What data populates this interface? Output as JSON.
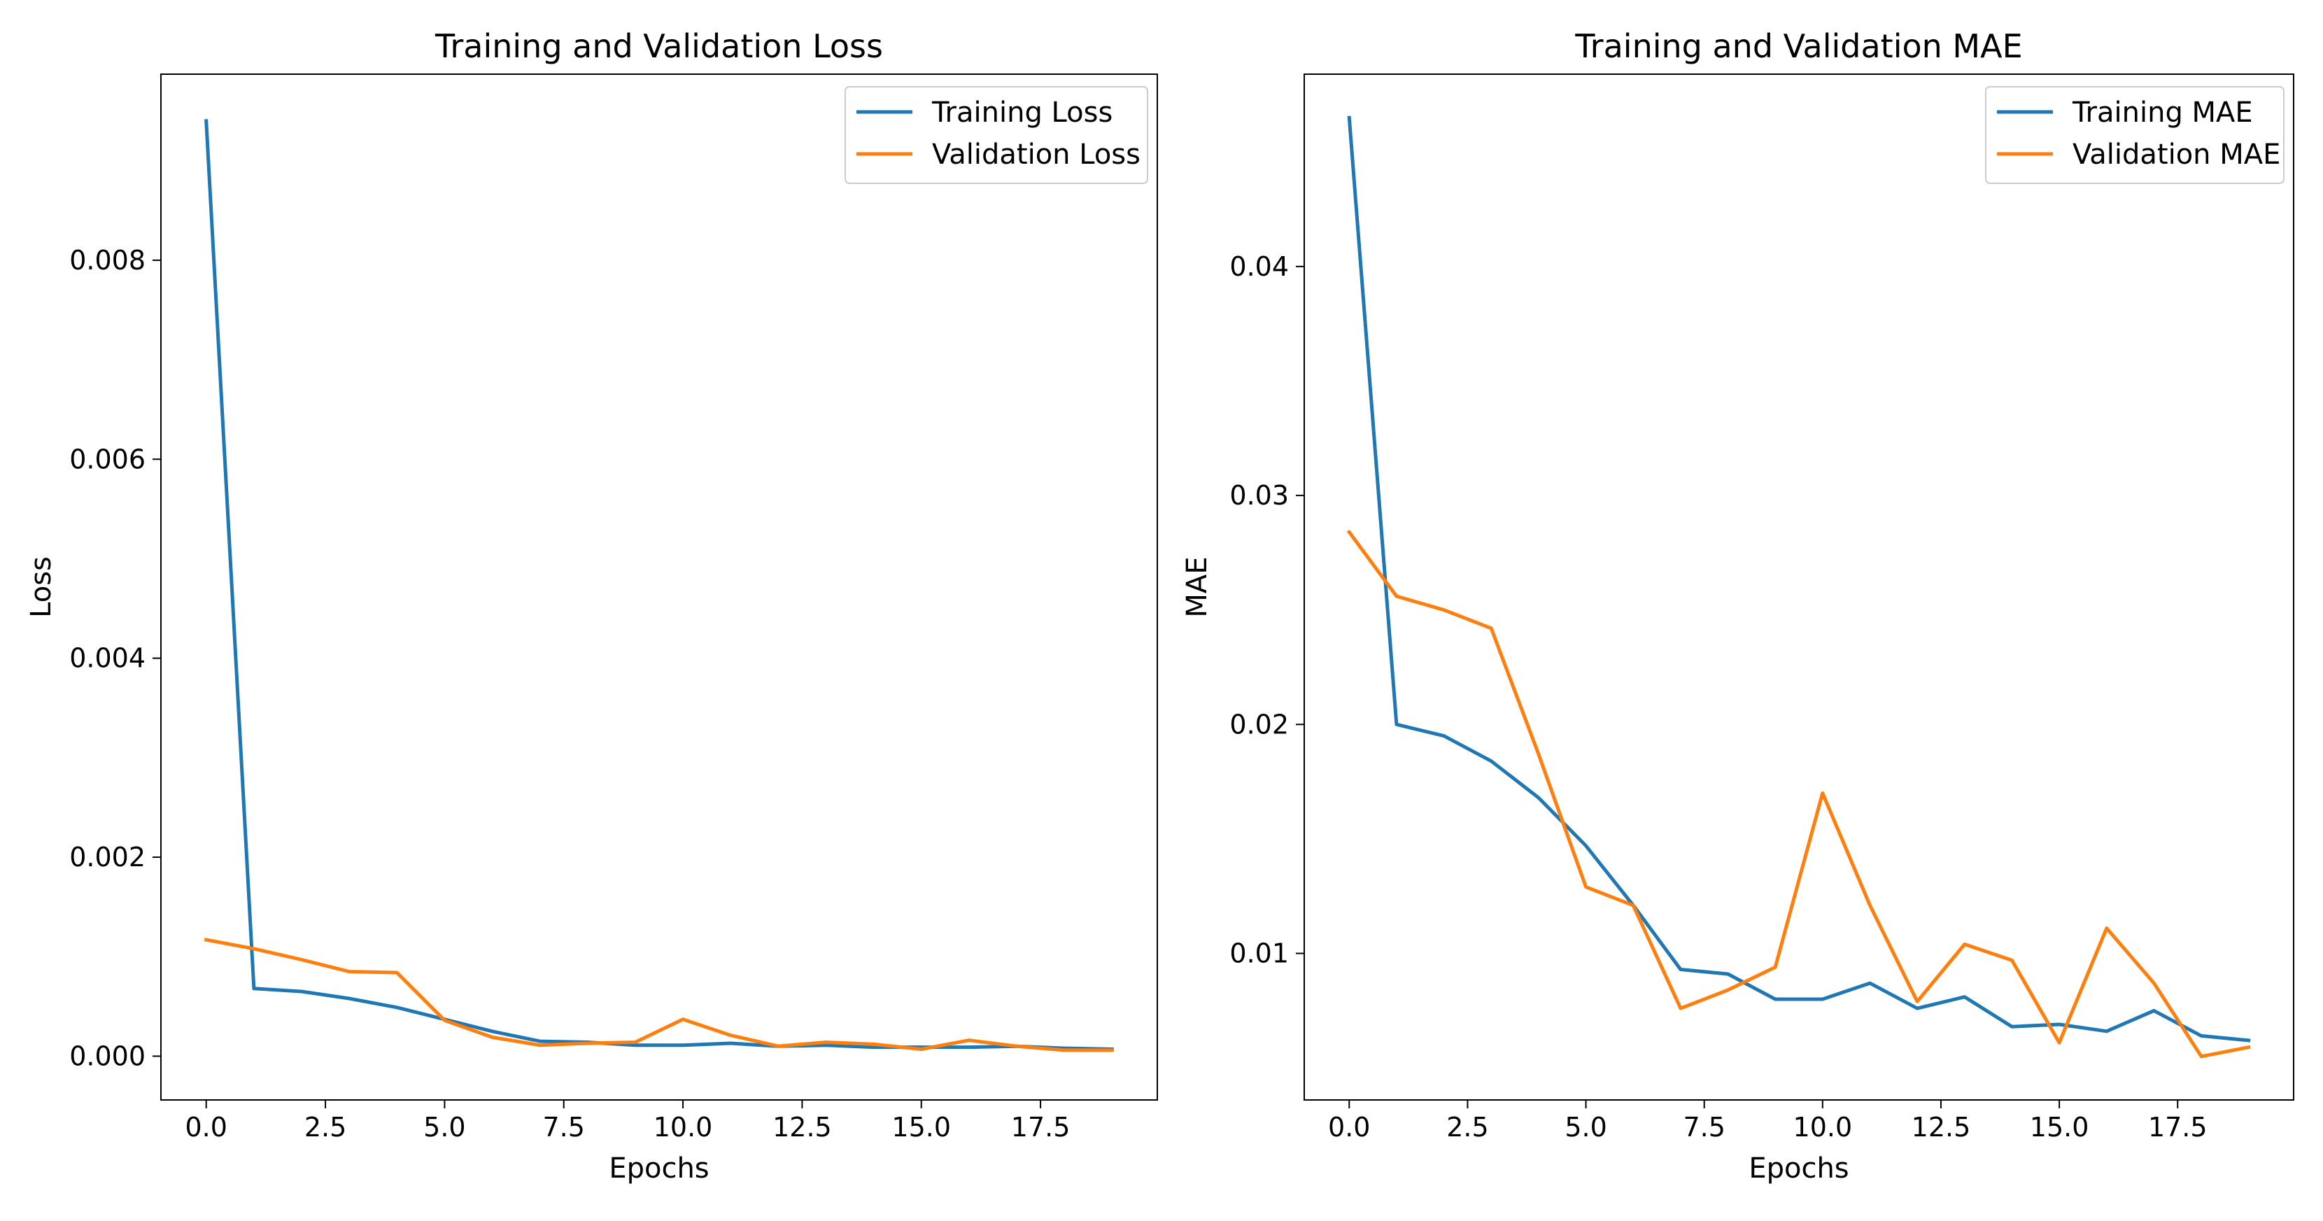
{
  "figure": {
    "colors": {
      "training": "#1f77b4",
      "validation": "#ff7f0e",
      "axes": "#000000",
      "legend_border": "#cccccc"
    }
  },
  "chart_data": [
    {
      "type": "line",
      "title": "Training and Validation Loss",
      "xlabel": "Epochs",
      "ylabel": "Loss",
      "xlim": [
        -0.95,
        19.95
      ],
      "ylim": [
        -0.00044,
        0.00987
      ],
      "xticks": [
        0.0,
        2.5,
        5.0,
        7.5,
        10.0,
        12.5,
        15.0,
        17.5
      ],
      "xtick_labels": [
        "0.0",
        "2.5",
        "5.0",
        "7.5",
        "10.0",
        "12.5",
        "15.0",
        "17.5"
      ],
      "yticks": [
        0.0,
        0.002,
        0.004,
        0.006,
        0.008
      ],
      "ytick_labels": [
        "0.000",
        "0.002",
        "0.004",
        "0.006",
        "0.008"
      ],
      "legend_position": "top-right",
      "grid": false,
      "x": [
        0,
        1,
        2,
        3,
        4,
        5,
        6,
        7,
        8,
        9,
        10,
        11,
        12,
        13,
        14,
        15,
        16,
        17,
        18,
        19
      ],
      "series": [
        {
          "name": "Training Loss",
          "color_key": "training",
          "values": [
            0.0094,
            0.00068,
            0.00065,
            0.00058,
            0.00049,
            0.00037,
            0.00025,
            0.00015,
            0.00014,
            0.00011,
            0.00011,
            0.00013,
            0.0001,
            0.00011,
            9e-05,
            9e-05,
            9e-05,
            0.0001,
            8e-05,
            7e-05
          ]
        },
        {
          "name": "Validation Loss",
          "color_key": "validation",
          "values": [
            0.00117,
            0.00108,
            0.00097,
            0.00085,
            0.00084,
            0.00036,
            0.00019,
            0.00011,
            0.00013,
            0.00014,
            0.00037,
            0.00021,
            0.0001,
            0.00014,
            0.00012,
            7e-05,
            0.00016,
            0.0001,
            6e-05,
            6e-05
          ]
        }
      ]
    },
    {
      "type": "line",
      "title": "Training and Validation MAE",
      "xlabel": "Epochs",
      "ylabel": "MAE",
      "xlim": [
        -0.95,
        19.95
      ],
      "ylim": [
        0.0036,
        0.0484
      ],
      "xticks": [
        0.0,
        2.5,
        5.0,
        7.5,
        10.0,
        12.5,
        15.0,
        17.5
      ],
      "xtick_labels": [
        "0.0",
        "2.5",
        "5.0",
        "7.5",
        "10.0",
        "12.5",
        "15.0",
        "17.5"
      ],
      "yticks": [
        0.01,
        0.02,
        0.03,
        0.04
      ],
      "ytick_labels": [
        "0.01",
        "0.02",
        "0.03",
        "0.04"
      ],
      "legend_position": "top-right",
      "grid": false,
      "x": [
        0,
        1,
        2,
        3,
        4,
        5,
        6,
        7,
        8,
        9,
        10,
        11,
        12,
        13,
        14,
        15,
        16,
        17,
        18,
        19
      ],
      "series": [
        {
          "name": "Training MAE",
          "color_key": "training",
          "values": [
            0.0465,
            0.02,
            0.0195,
            0.0184,
            0.0168,
            0.0147,
            0.0121,
            0.0093,
            0.0091,
            0.008,
            0.008,
            0.0087,
            0.0076,
            0.0081,
            0.0068,
            0.0069,
            0.0066,
            0.0075,
            0.0064,
            0.0062
          ]
        },
        {
          "name": "Validation MAE",
          "color_key": "validation",
          "values": [
            0.0284,
            0.0256,
            0.025,
            0.0242,
            0.0187,
            0.0129,
            0.0121,
            0.0076,
            0.0084,
            0.0094,
            0.017,
            0.0121,
            0.0079,
            0.0104,
            0.0097,
            0.0061,
            0.0111,
            0.0087,
            0.0055,
            0.0059
          ]
        }
      ]
    }
  ]
}
